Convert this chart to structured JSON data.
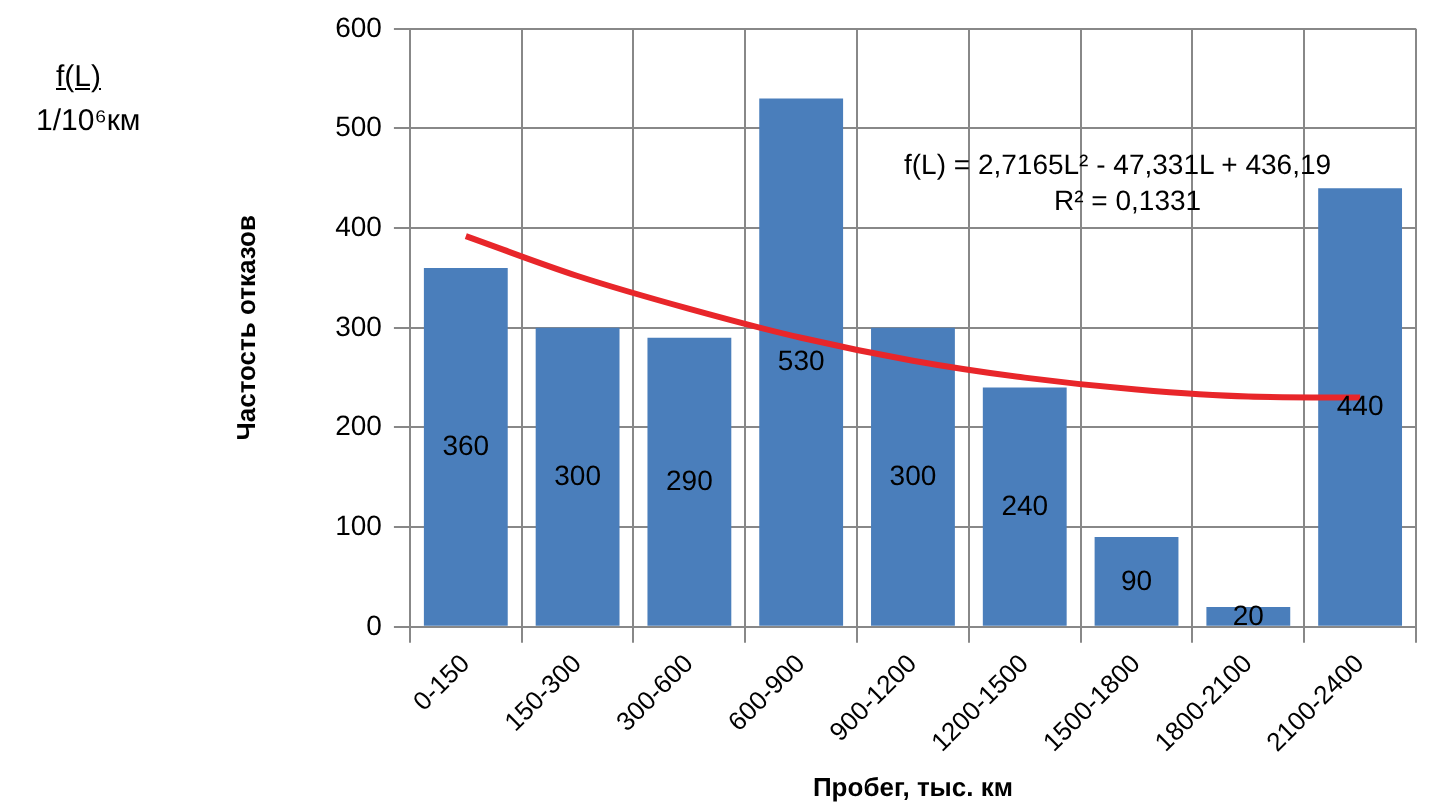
{
  "chart_data": {
    "type": "bar",
    "xlabel": "Пробег, тыс. км",
    "ylabel": "Частость отказов",
    "categories": [
      "0-150",
      "150-300",
      "300-600",
      "600-900",
      "900-1200",
      "1200-1500",
      "1500-1800",
      "1800-2100",
      "2100-2400"
    ],
    "series": [
      {
        "color": "#4a7ebb",
        "values": [
          360,
          300,
          290,
          530,
          300,
          240,
          90,
          20,
          440
        ],
        "value_labels": [
          "360",
          "300",
          "290",
          "530",
          "300",
          "240",
          "90",
          "20",
          "440"
        ]
      },
      {
        "type": "line",
        "color": "#e8262a",
        "values": [
          392,
          352,
          319,
          290,
          267,
          250,
          238,
          231,
          230
        ]
      }
    ],
    "ylim": [
      0,
      600
    ],
    "yticks": [
      0,
      100,
      200,
      300,
      400,
      500,
      600
    ],
    "grid": true,
    "legend": false,
    "marker": "none",
    "line_style": "solid",
    "annotations": [
      "f(L)",
      "1/10⁶км",
      "f(L) = 2,7165L² - 47,331L + 436,19",
      "R² = 0,1331"
    ]
  }
}
